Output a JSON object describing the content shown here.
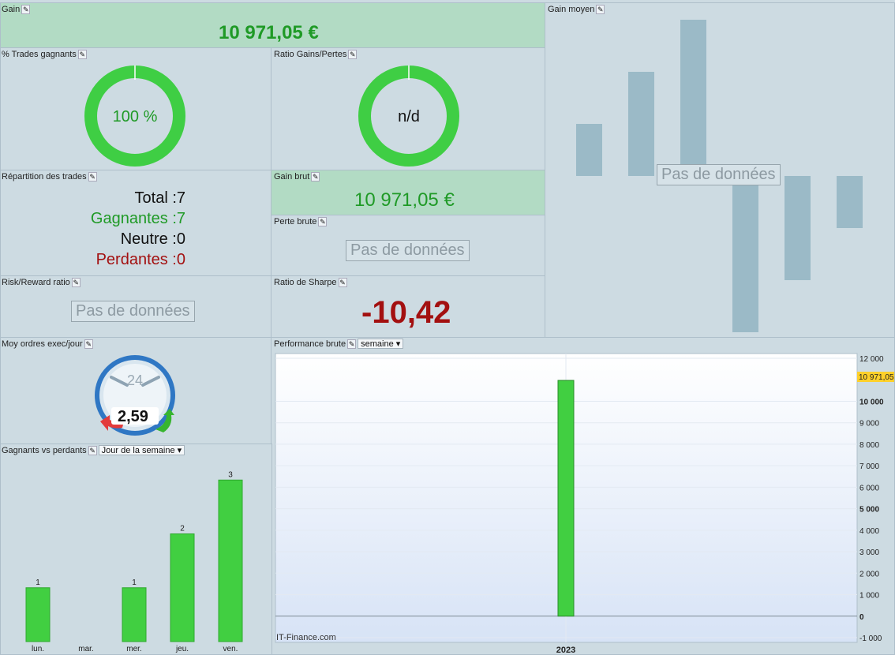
{
  "gain": {
    "title": "Gain",
    "value": "10 971,05 €"
  },
  "gain_moyen": {
    "title": "Gain moyen",
    "no_data": "Pas de données"
  },
  "trades_gagnants": {
    "title": "% Trades gagnants",
    "value": "100 %",
    "pct": 100
  },
  "ratio_gains_pertes": {
    "title": "Ratio Gains/Pertes",
    "value": "n/d",
    "pct": 100
  },
  "repartition": {
    "title": "Répartition des trades",
    "rows": [
      {
        "label": "Total :",
        "value": "7",
        "color": "#111111"
      },
      {
        "label": "Gagnantes :",
        "value": "7",
        "color": "#1f9a26"
      },
      {
        "label": "Neutre :",
        "value": "0",
        "color": "#111111"
      },
      {
        "label": "Perdantes :",
        "value": "0",
        "color": "#a31010"
      }
    ]
  },
  "gain_brut": {
    "title": "Gain brut",
    "value": "10 971,05 €"
  },
  "perte_brute": {
    "title": "Perte brute",
    "no_data": "Pas de données"
  },
  "risk_reward": {
    "title": "Risk/Reward ratio",
    "no_data": "Pas de données"
  },
  "sharpe": {
    "title": "Ratio de Sharpe",
    "value": "-10,42"
  },
  "moy_ordres": {
    "title": "Moy ordres exec/jour",
    "clock_label": "24",
    "value": "2,59"
  },
  "gagnants_perdants": {
    "title": "Gagnants vs perdants",
    "dropdown": "Jour de la semaine"
  },
  "performance": {
    "title": "Performance brute",
    "dropdown": "semaine",
    "watermark": "IT-Finance.com",
    "last_value_label": "10 971,05"
  },
  "colors": {
    "accent_green": "#41cf41",
    "bar_blue": "#9bbac7",
    "loss_red": "#a31010"
  },
  "chart_data": [
    {
      "type": "bar",
      "title": "Gagnants vs perdants",
      "categories": [
        "lun.",
        "mar.",
        "mer.",
        "jeu.",
        "ven."
      ],
      "values": [
        1,
        0,
        1,
        2,
        3
      ],
      "value_labels": [
        "1",
        "",
        "1",
        "2",
        "3"
      ],
      "ylim": [
        0,
        3.4
      ]
    },
    {
      "type": "bar",
      "title": "Performance brute",
      "categories": [
        "2023"
      ],
      "values": [
        10971.05
      ],
      "ylim": [
        -1000,
        12000
      ],
      "yticks": [
        {
          "v": 12000,
          "label": "12 000",
          "bold": false
        },
        {
          "v": 10000,
          "label": "10 000",
          "bold": true
        },
        {
          "v": 9000,
          "label": "9 000",
          "bold": false
        },
        {
          "v": 8000,
          "label": "8 000",
          "bold": false
        },
        {
          "v": 7000,
          "label": "7 000",
          "bold": false
        },
        {
          "v": 6000,
          "label": "6 000",
          "bold": false
        },
        {
          "v": 5000,
          "label": "5 000",
          "bold": true
        },
        {
          "v": 4000,
          "label": "4 000",
          "bold": false
        },
        {
          "v": 3000,
          "label": "3 000",
          "bold": false
        },
        {
          "v": 2000,
          "label": "2 000",
          "bold": false
        },
        {
          "v": 1000,
          "label": "1 000",
          "bold": false
        },
        {
          "v": 0,
          "label": "0",
          "bold": true
        },
        {
          "v": -1000,
          "label": "-1 000",
          "bold": false
        }
      ]
    },
    {
      "type": "bar",
      "title": "Gain moyen",
      "note": "placeholder background bars shown behind 'Pas de données'",
      "values": [
        1,
        2,
        3,
        -3,
        -2,
        -1
      ]
    }
  ]
}
